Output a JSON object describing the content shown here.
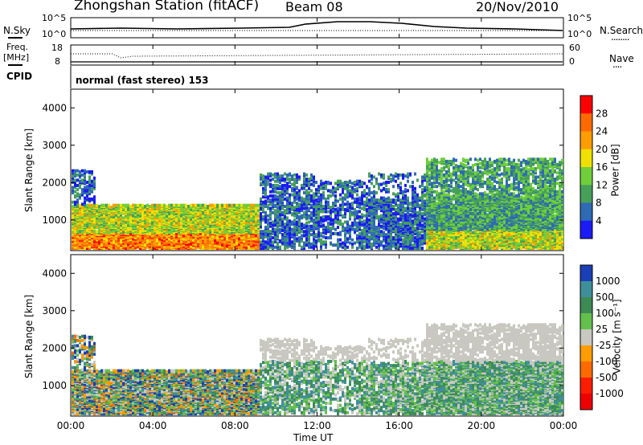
{
  "header": {
    "station": "Zhongshan Station (fitACF)",
    "beam": "Beam 08",
    "date": "20/Nov/2010"
  },
  "sidebar_left": {
    "nsky_label": "N.Sky",
    "freq_label": "Freq.",
    "freq_unit": "[MHz]",
    "cpid_label": "CPID"
  },
  "sidebar_right": {
    "nsearch_label": "N.Search",
    "nave_label": "Nave",
    "dotted_marker": "........",
    "dotted_marker_short": "...."
  },
  "top_panel": {
    "left_ticks": [
      "10^5",
      "10^0"
    ],
    "right_ticks": [
      "10^5",
      "10^0"
    ]
  },
  "freq_panel": {
    "left_ticks": [
      "18",
      "8"
    ],
    "right_ticks": [
      "60",
      "0"
    ]
  },
  "cpid_text": "normal (fast stereo) 153",
  "chart_data": [
    {
      "type": "heatmap",
      "name": "power",
      "ylabel": "Slant Range [km]",
      "yticks": [
        "4000",
        "3000",
        "2000",
        "1000"
      ],
      "ylim": [
        180,
        4500
      ],
      "colorbar_label": "Power [dB]",
      "colorbar_ticks": [
        "28",
        "24",
        "20",
        "16",
        "12",
        "8",
        "4"
      ],
      "colorbar_colors": [
        "#ff0000",
        "#ff6a00",
        "#ff9d00",
        "#f0e000",
        "#6fcf3a",
        "#46a05a",
        "#2f6ab5",
        "#1b1bf5"
      ]
    },
    {
      "type": "heatmap",
      "name": "velocity",
      "ylabel": "Slant Range [km]",
      "yticks": [
        "4000",
        "3000",
        "2000",
        "1000"
      ],
      "ylim": [
        180,
        4500
      ],
      "colorbar_label": "Velocity [m s⁻¹]",
      "colorbar_ticks": [
        "1000",
        "500",
        "100",
        "25",
        "-25",
        "-100",
        "-500",
        "-1000"
      ],
      "colorbar_colors": [
        "#1b3fb5",
        "#3f8f9a",
        "#3e8a55",
        "#63c04d",
        "#c8c8c0",
        "#ff9d00",
        "#ff6a00",
        "#ff1d00",
        "#ee0000"
      ],
      "xlabel": "Time UT",
      "xticks": [
        "00:00",
        "04:00",
        "08:00",
        "12:00",
        "16:00",
        "20:00",
        "00:00"
      ]
    }
  ]
}
